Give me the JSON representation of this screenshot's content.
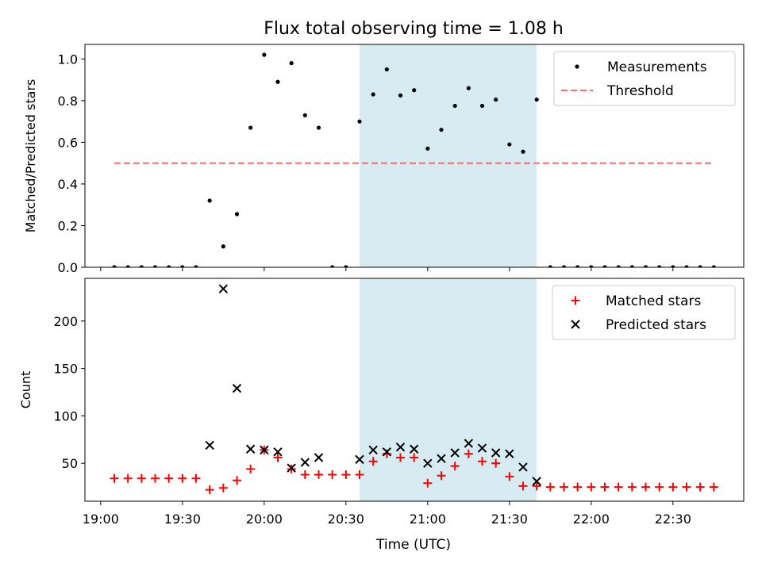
{
  "figure": {
    "title": "Flux total observing time = 1.08 h",
    "xlabel": "Time (UTC)",
    "x_tick_labels": [
      "19:00",
      "19:30",
      "20:00",
      "20:30",
      "21:00",
      "21:30",
      "22:00",
      "22:30"
    ],
    "shaded_region": {
      "start": "20:35",
      "end": "21:40",
      "color": "#add8e6"
    }
  },
  "chart_data": [
    {
      "type": "scatter",
      "ylabel": "Matched/Predicted stars",
      "ylim": [
        0,
        1.07
      ],
      "y_ticks": [
        0.0,
        0.2,
        0.4,
        0.6,
        0.8,
        1.0
      ],
      "y_tick_labels": [
        "0.0",
        "0.2",
        "0.4",
        "0.6",
        "0.8",
        "1.0"
      ],
      "legend": [
        "Measurements",
        "Threshold"
      ],
      "legend_position": "top-right",
      "x": [
        "19:05",
        "19:10",
        "19:15",
        "19:20",
        "19:25",
        "19:30",
        "19:35",
        "19:40",
        "19:45",
        "19:50",
        "19:55",
        "20:00",
        "20:05",
        "20:10",
        "20:15",
        "20:20",
        "20:25",
        "20:30",
        "20:35",
        "20:40",
        "20:45",
        "20:50",
        "20:55",
        "21:00",
        "21:05",
        "21:10",
        "21:15",
        "21:20",
        "21:25",
        "21:30",
        "21:35",
        "21:40",
        "21:45",
        "21:50",
        "21:55",
        "22:00",
        "22:05",
        "22:10",
        "22:15",
        "22:20",
        "22:25",
        "22:30",
        "22:35",
        "22:40",
        "22:45"
      ],
      "series": [
        {
          "name": "Measurements",
          "color": "#000000",
          "values": [
            0,
            0,
            0,
            0,
            0,
            0,
            0,
            0.32,
            0.1,
            0.255,
            0.67,
            1.02,
            0.89,
            0.98,
            0.73,
            0.67,
            0,
            0,
            0.7,
            0.83,
            0.95,
            0.825,
            0.85,
            0.57,
            0.66,
            0.775,
            0.86,
            0.775,
            0.805,
            0.59,
            0.555,
            0.805,
            0,
            0,
            0,
            0,
            0,
            0,
            0,
            0,
            0,
            0,
            0,
            0,
            0
          ]
        },
        {
          "name": "Threshold",
          "color": "#ff6b6b",
          "style": "dashed",
          "x_range": [
            "19:05",
            "22:45"
          ],
          "value": 0.5
        }
      ]
    },
    {
      "type": "scatter",
      "ylabel": "Count",
      "ylim": [
        10,
        245
      ],
      "y_ticks": [
        50,
        100,
        150,
        200
      ],
      "y_tick_labels": [
        "50",
        "100",
        "150",
        "200"
      ],
      "legend": [
        "Matched stars",
        "Predicted stars"
      ],
      "legend_position": "top-right",
      "series": [
        {
          "name": "Matched stars",
          "marker": "+",
          "color": "#ff0000",
          "x": [
            "19:05",
            "19:10",
            "19:15",
            "19:20",
            "19:25",
            "19:30",
            "19:35",
            "19:40",
            "19:45",
            "19:50",
            "19:55",
            "20:00",
            "20:05",
            "20:10",
            "20:15",
            "20:20",
            "20:25",
            "20:30",
            "20:35",
            "20:40",
            "20:45",
            "20:50",
            "20:55",
            "21:00",
            "21:05",
            "21:10",
            "21:15",
            "21:20",
            "21:25",
            "21:30",
            "21:35",
            "21:40",
            "21:45",
            "21:50",
            "21:55",
            "22:00",
            "22:05",
            "22:10",
            "22:15",
            "22:20",
            "22:25",
            "22:30",
            "22:35",
            "22:40",
            "22:45"
          ],
          "values": [
            34,
            34,
            34,
            34,
            34,
            34,
            34,
            22,
            24,
            32,
            44,
            64,
            56,
            44,
            38,
            38,
            38,
            38,
            38,
            52,
            60,
            56,
            56,
            29,
            37,
            47,
            60,
            52,
            50,
            36,
            26,
            26,
            25,
            25,
            25,
            25,
            25,
            25,
            25,
            25,
            25,
            25,
            25,
            25,
            25
          ]
        },
        {
          "name": "Predicted stars",
          "marker": "x",
          "color": "#000000",
          "x": [
            "19:40",
            "19:45",
            "19:50",
            "19:55",
            "20:00",
            "20:05",
            "20:10",
            "20:15",
            "20:20",
            "20:35",
            "20:40",
            "20:45",
            "20:50",
            "20:55",
            "21:00",
            "21:05",
            "21:10",
            "21:15",
            "21:20",
            "21:25",
            "21:30",
            "21:35",
            "21:40"
          ],
          "values": [
            69,
            234,
            129,
            65,
            64,
            62,
            45,
            51,
            56,
            54,
            64,
            62,
            67,
            65,
            50,
            55,
            61,
            71,
            66,
            61,
            60,
            46,
            31
          ]
        }
      ]
    }
  ]
}
